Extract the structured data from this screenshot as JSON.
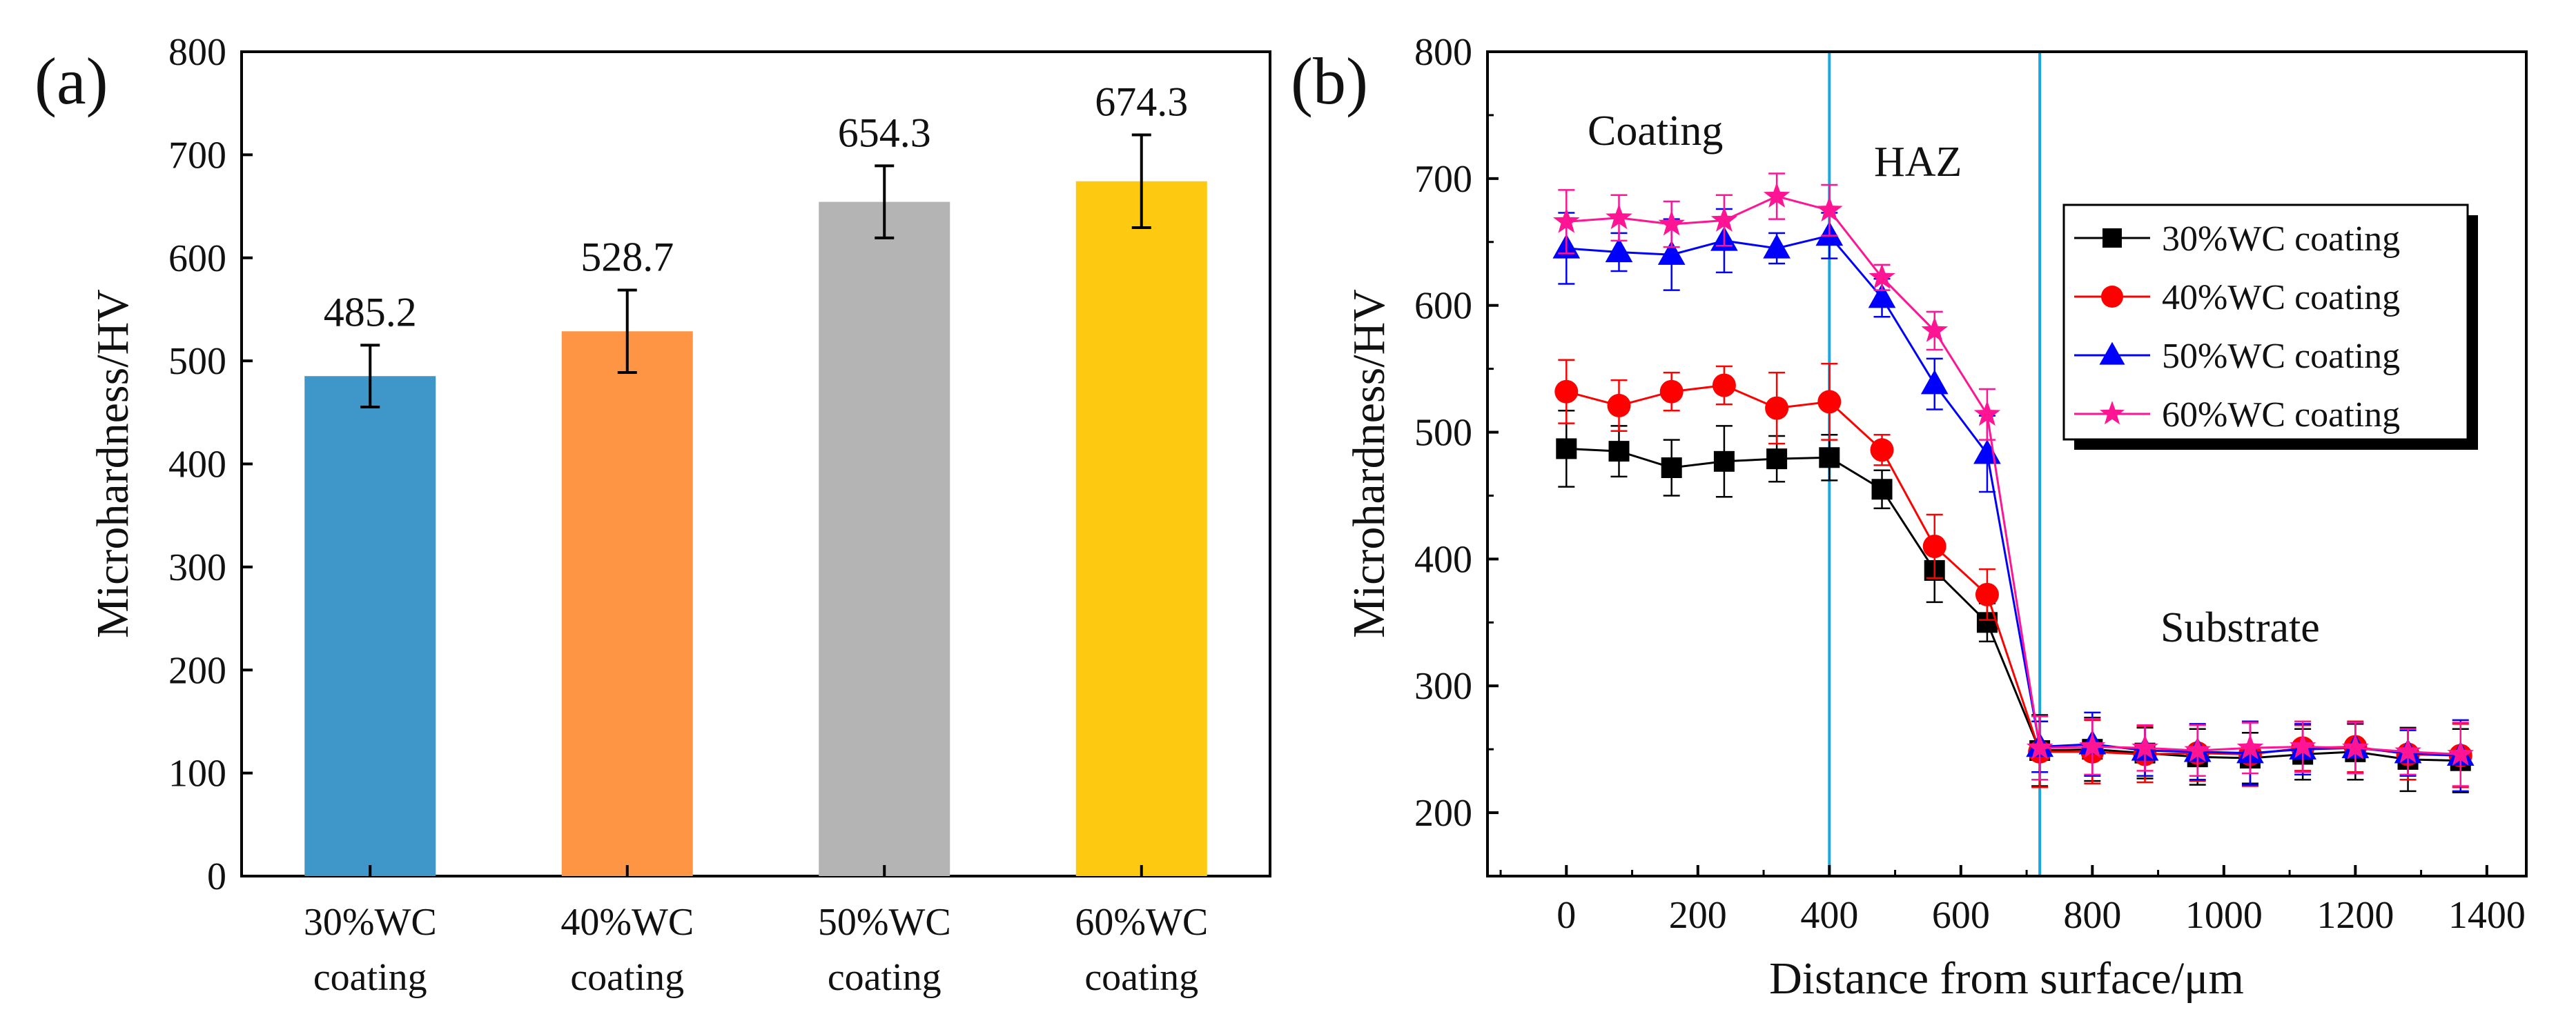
{
  "chart_data": [
    {
      "type": "bar",
      "panel_label": "(a)",
      "title": "",
      "xlabel": "",
      "ylabel": "Microhardness/HV",
      "ylim": [
        0,
        800
      ],
      "yticks": [
        "0",
        "100",
        "200",
        "300",
        "400",
        "500",
        "600",
        "700",
        "800"
      ],
      "categories": [
        {
          "line1": "30%WC",
          "line2": "coating"
        },
        {
          "line1": "40%WC",
          "line2": "coating"
        },
        {
          "line1": "50%WC",
          "line2": "coating"
        },
        {
          "line1": "60%WC",
          "line2": "coating"
        }
      ],
      "values": [
        485.2,
        528.7,
        654.3,
        674.3
      ],
      "value_labels": [
        "485.2",
        "528.7",
        "654.3",
        "674.3"
      ],
      "errors": [
        30,
        40,
        35,
        45
      ],
      "colors": [
        "#3f96c9",
        "#fd9544",
        "#b4b4b4",
        "#fdc911"
      ],
      "grid": false
    },
    {
      "type": "line",
      "panel_label": "(b)",
      "title": "",
      "xlabel": "Distance from surface/μm",
      "ylabel": "Microhardness/HV",
      "xlim": [
        -120,
        1460
      ],
      "ylim": [
        150,
        800
      ],
      "xticks": [
        "0",
        "200",
        "400",
        "600",
        "800",
        "1000",
        "1200",
        "1400"
      ],
      "yticks": [
        "200",
        "300",
        "400",
        "500",
        "600",
        "700",
        "800"
      ],
      "x": [
        0,
        80,
        160,
        240,
        320,
        400,
        480,
        560,
        640,
        720,
        800,
        880,
        960,
        1040,
        1120,
        1200,
        1280,
        1360
      ],
      "series": [
        {
          "name": "30%WC coating",
          "color": "#000000",
          "marker": "square",
          "values": [
            487,
            485,
            472,
            477,
            479,
            480,
            455,
            391,
            350,
            249,
            250,
            247,
            244,
            243,
            246,
            248,
            242,
            241
          ],
          "errors": [
            30,
            20,
            22,
            28,
            18,
            18,
            15,
            25,
            15,
            28,
            25,
            20,
            22,
            20,
            20,
            22,
            25,
            25
          ]
        },
        {
          "name": "40%WC coating",
          "color": "#ff0000",
          "marker": "circle",
          "values": [
            532,
            521,
            532,
            537,
            519,
            524,
            486,
            410,
            372,
            248,
            248,
            246,
            247,
            246,
            251,
            252,
            246,
            245
          ],
          "errors": [
            25,
            20,
            15,
            15,
            28,
            30,
            12,
            25,
            20,
            28,
            25,
            22,
            22,
            25,
            18,
            20,
            20,
            25
          ]
        },
        {
          "name": "50%WC coating",
          "color": "#0000ff",
          "marker": "triangle",
          "values": [
            645,
            642,
            640,
            651,
            645,
            655,
            606,
            538,
            483,
            252,
            254,
            249,
            248,
            247,
            250,
            251,
            247,
            245
          ],
          "errors": [
            28,
            15,
            28,
            25,
            12,
            18,
            15,
            20,
            30,
            20,
            25,
            20,
            22,
            25,
            20,
            20,
            18,
            28
          ]
        },
        {
          "name": "60%WC coating",
          "color": "#ff1493",
          "marker": "star",
          "values": [
            666,
            669,
            664,
            667,
            686,
            675,
            622,
            580,
            514,
            251,
            252,
            251,
            249,
            251,
            252,
            251,
            248,
            246
          ],
          "errors": [
            25,
            18,
            18,
            20,
            18,
            20,
            10,
            15,
            20,
            25,
            22,
            18,
            20,
            20,
            20,
            20,
            18,
            25
          ]
        }
      ],
      "vlines": [
        400,
        720
      ],
      "vline_color": "#1ba8e0",
      "legend_position": "top-right",
      "annotations": [
        "Coating",
        "HAZ",
        "Substrate"
      ],
      "grid": false
    }
  ]
}
